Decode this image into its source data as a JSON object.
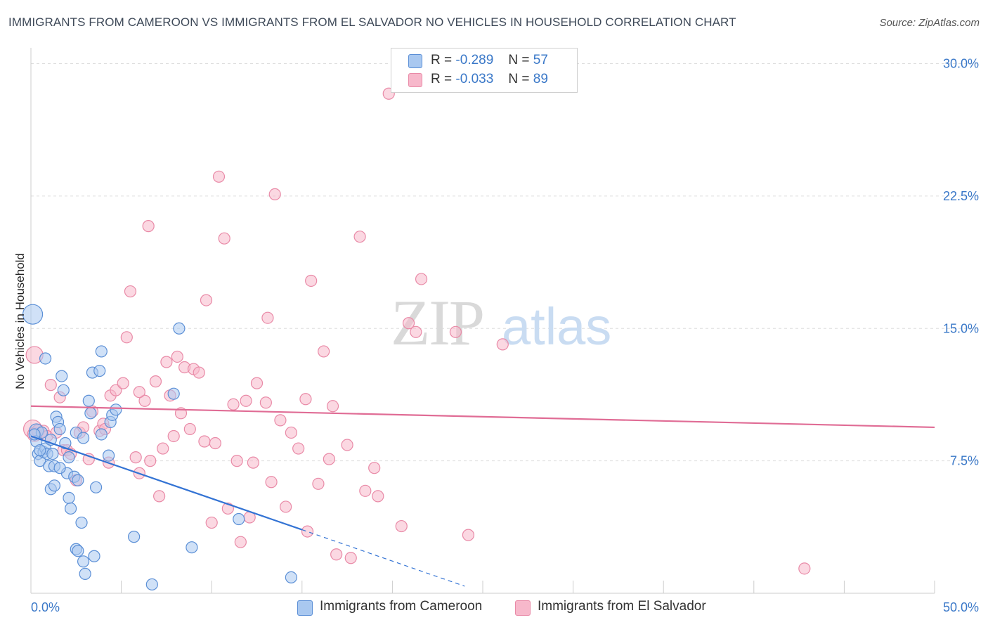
{
  "title": "IMMIGRANTS FROM CAMEROON VS IMMIGRANTS FROM EL SALVADOR NO VEHICLES IN HOUSEHOLD CORRELATION CHART",
  "source": "Source: ZipAtlas.com",
  "watermark": {
    "zip": "ZIP",
    "atlas": "atlas"
  },
  "legend": {
    "rows": [
      {
        "r_label": "R =",
        "r_value": "-0.289",
        "n_label": "N =",
        "n_value": "57"
      },
      {
        "r_label": "R =",
        "r_value": "-0.033",
        "n_label": "N =",
        "n_value": "89"
      }
    ]
  },
  "bottom_legend": {
    "cameroon": "Immigrants from Cameroon",
    "el_salvador": "Immigrants from El Salvador"
  },
  "colors": {
    "cameroon_fill": "#a9c8f0",
    "cameroon_stroke": "#5b8fd6",
    "cameroon_line": "#3373d4",
    "el_salvador_fill": "#f7b8cb",
    "el_salvador_stroke": "#e98aa7",
    "el_salvador_line": "#e06c95",
    "tick_text": "#3a78c8",
    "grid": "#dddddd"
  },
  "chart_data": {
    "type": "scatter",
    "title": "IMMIGRANTS FROM CAMEROON VS IMMIGRANTS FROM EL SALVADOR NO VEHICLES IN HOUSEHOLD CORRELATION CHART",
    "xlabel": "",
    "ylabel": "No Vehicles in Household",
    "xlim": [
      0,
      50
    ],
    "ylim": [
      0,
      30.5
    ],
    "x_tick_labels": [
      "0.0%",
      "50.0%"
    ],
    "y_ticks": [
      7.5,
      15.0,
      22.5,
      30.0
    ],
    "y_tick_labels": [
      "7.5%",
      "15.0%",
      "22.5%",
      "30.0%"
    ],
    "grid": true,
    "legend_position": "top-center",
    "series": [
      {
        "name": "Immigrants from Cameroon",
        "R": -0.289,
        "N": 57,
        "trend": {
          "x0": 0,
          "y0": 8.9,
          "x1": 15,
          "y1": 3.6,
          "dashed_to_x": 24,
          "dashed_to_y": 0.4
        },
        "points": [
          [
            0.1,
            15.8,
            14
          ],
          [
            0.3,
            9.2,
            10
          ],
          [
            0.3,
            8.6,
            8
          ],
          [
            0.4,
            7.9,
            8
          ],
          [
            0.5,
            7.5,
            8
          ],
          [
            0.6,
            9.1,
            8
          ],
          [
            0.7,
            8.0,
            8
          ],
          [
            0.8,
            8.2,
            8
          ],
          [
            0.9,
            7.9,
            8
          ],
          [
            0.8,
            13.3,
            8
          ],
          [
            1.0,
            7.2,
            8
          ],
          [
            1.1,
            8.7,
            8
          ],
          [
            1.2,
            7.9,
            8
          ],
          [
            1.3,
            7.2,
            8
          ],
          [
            1.1,
            5.9,
            8
          ],
          [
            1.3,
            6.1,
            8
          ],
          [
            1.4,
            10.0,
            8
          ],
          [
            1.5,
            9.7,
            8
          ],
          [
            1.6,
            9.3,
            8
          ],
          [
            1.7,
            12.3,
            8
          ],
          [
            1.8,
            11.5,
            8
          ],
          [
            1.9,
            8.5,
            8
          ],
          [
            2.0,
            6.8,
            8
          ],
          [
            2.1,
            7.7,
            8
          ],
          [
            2.1,
            5.4,
            8
          ],
          [
            2.2,
            4.8,
            8
          ],
          [
            2.4,
            6.6,
            8
          ],
          [
            2.5,
            9.1,
            8
          ],
          [
            2.6,
            6.4,
            8
          ],
          [
            2.5,
            2.5,
            8
          ],
          [
            2.6,
            2.4,
            8
          ],
          [
            2.8,
            4.0,
            8
          ],
          [
            2.9,
            1.8,
            8
          ],
          [
            3.0,
            1.1,
            8
          ],
          [
            3.2,
            10.9,
            8
          ],
          [
            3.3,
            10.2,
            8
          ],
          [
            3.4,
            12.5,
            8
          ],
          [
            3.5,
            2.1,
            8
          ],
          [
            3.6,
            6.0,
            8
          ],
          [
            3.8,
            12.6,
            8
          ],
          [
            3.9,
            13.7,
            8
          ],
          [
            3.9,
            9.0,
            8
          ],
          [
            4.3,
            7.8,
            8
          ],
          [
            4.4,
            9.7,
            8
          ],
          [
            4.5,
            10.1,
            8
          ],
          [
            4.7,
            10.4,
            8
          ],
          [
            5.7,
            3.2,
            8
          ],
          [
            6.7,
            0.5,
            8
          ],
          [
            7.9,
            11.3,
            8
          ],
          [
            8.2,
            15.0,
            8
          ],
          [
            8.9,
            2.6,
            8
          ],
          [
            11.5,
            4.2,
            8
          ],
          [
            14.4,
            0.9,
            8
          ],
          [
            0.2,
            9.0,
            8
          ],
          [
            0.5,
            8.1,
            8
          ],
          [
            1.6,
            7.1,
            8
          ],
          [
            2.9,
            8.8,
            8
          ]
        ]
      },
      {
        "name": "Immigrants from El Salvador",
        "R": -0.033,
        "N": 89,
        "trend": {
          "x0": 0,
          "y0": 10.6,
          "x1": 50,
          "y1": 9.4
        },
        "points": [
          [
            0.1,
            9.3,
            13
          ],
          [
            0.2,
            13.5,
            12
          ],
          [
            0.2,
            9.0,
            10
          ],
          [
            0.4,
            9.2,
            9
          ],
          [
            0.7,
            9.2,
            8
          ],
          [
            0.9,
            8.9,
            8
          ],
          [
            1.1,
            11.8,
            8
          ],
          [
            1.4,
            9.1,
            8
          ],
          [
            1.6,
            11.1,
            8
          ],
          [
            1.8,
            8.1,
            8
          ],
          [
            2.0,
            8.1,
            8
          ],
          [
            2.2,
            7.9,
            8
          ],
          [
            2.5,
            6.4,
            8
          ],
          [
            2.7,
            9.1,
            8
          ],
          [
            2.9,
            9.4,
            8
          ],
          [
            3.2,
            7.6,
            8
          ],
          [
            3.4,
            10.3,
            8
          ],
          [
            3.8,
            9.2,
            8
          ],
          [
            4.0,
            9.6,
            8
          ],
          [
            4.1,
            9.3,
            8
          ],
          [
            4.3,
            7.4,
            8
          ],
          [
            4.4,
            11.2,
            8
          ],
          [
            4.7,
            11.5,
            8
          ],
          [
            5.1,
            11.9,
            8
          ],
          [
            5.3,
            14.5,
            8
          ],
          [
            5.5,
            17.1,
            8
          ],
          [
            5.8,
            7.7,
            8
          ],
          [
            6.0,
            6.8,
            8
          ],
          [
            6.3,
            10.9,
            8
          ],
          [
            6.5,
            20.8,
            8
          ],
          [
            6.6,
            7.5,
            8
          ],
          [
            6.9,
            12.0,
            8
          ],
          [
            7.1,
            5.5,
            8
          ],
          [
            7.3,
            8.2,
            8
          ],
          [
            7.5,
            13.1,
            8
          ],
          [
            7.7,
            11.2,
            8
          ],
          [
            7.9,
            8.9,
            8
          ],
          [
            8.1,
            13.4,
            8
          ],
          [
            8.3,
            10.2,
            8
          ],
          [
            8.5,
            12.8,
            8
          ],
          [
            8.8,
            9.3,
            8
          ],
          [
            9.0,
            12.7,
            8
          ],
          [
            9.3,
            12.5,
            8
          ],
          [
            9.6,
            8.6,
            8
          ],
          [
            9.7,
            16.6,
            8
          ],
          [
            10.0,
            4.0,
            8
          ],
          [
            10.2,
            8.5,
            8
          ],
          [
            10.4,
            23.6,
            8
          ],
          [
            10.7,
            20.1,
            8
          ],
          [
            10.9,
            4.8,
            8
          ],
          [
            11.2,
            10.7,
            8
          ],
          [
            11.4,
            7.5,
            8
          ],
          [
            11.6,
            2.9,
            8
          ],
          [
            11.9,
            10.9,
            8
          ],
          [
            12.1,
            4.3,
            8
          ],
          [
            12.3,
            7.4,
            8
          ],
          [
            12.5,
            11.9,
            8
          ],
          [
            13.0,
            10.8,
            8
          ],
          [
            13.1,
            15.6,
            8
          ],
          [
            13.3,
            6.3,
            8
          ],
          [
            13.5,
            22.6,
            8
          ],
          [
            13.8,
            9.8,
            8
          ],
          [
            14.1,
            4.9,
            8
          ],
          [
            14.4,
            9.1,
            8
          ],
          [
            14.8,
            8.2,
            8
          ],
          [
            15.2,
            11.0,
            8
          ],
          [
            15.3,
            3.5,
            8
          ],
          [
            15.5,
            17.7,
            8
          ],
          [
            15.9,
            6.2,
            8
          ],
          [
            16.2,
            13.7,
            8
          ],
          [
            16.5,
            7.6,
            8
          ],
          [
            16.7,
            10.6,
            8
          ],
          [
            16.9,
            2.2,
            8
          ],
          [
            17.5,
            8.4,
            8
          ],
          [
            17.7,
            2.0,
            8
          ],
          [
            18.2,
            20.2,
            8
          ],
          [
            18.5,
            5.8,
            8
          ],
          [
            19.0,
            7.1,
            8
          ],
          [
            19.2,
            5.5,
            8
          ],
          [
            19.8,
            28.3,
            8
          ],
          [
            20.5,
            3.8,
            8
          ],
          [
            20.9,
            15.3,
            8
          ],
          [
            21.3,
            14.8,
            8
          ],
          [
            21.6,
            17.8,
            8
          ],
          [
            23.5,
            14.8,
            8
          ],
          [
            24.2,
            3.3,
            8
          ],
          [
            26.1,
            14.1,
            8
          ],
          [
            42.8,
            1.4,
            8
          ],
          [
            6.0,
            11.4,
            8
          ]
        ]
      }
    ]
  }
}
